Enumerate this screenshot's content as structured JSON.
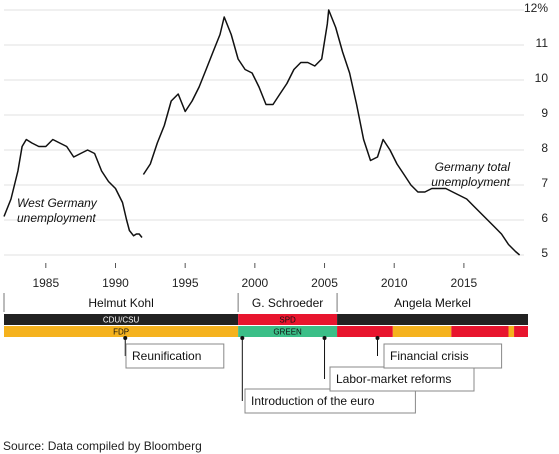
{
  "chart_data": {
    "type": "line",
    "title": "",
    "xlabel": "",
    "ylabel": "",
    "xlim": [
      1982,
      2019.6
    ],
    "ylim": [
      4.8,
      12.0
    ],
    "grid": "horizontal",
    "x_ticks": [
      1985,
      1990,
      1995,
      2000,
      2005,
      2010,
      2015
    ],
    "x_tick_labels": [
      "1985",
      "1990",
      "1995",
      "2000",
      "2005",
      "2010",
      "2015"
    ],
    "y_ticks": [
      5,
      6,
      7,
      8,
      9,
      10,
      11,
      12
    ],
    "y_tick_labels": [
      "5",
      "6",
      "7",
      "8",
      "9",
      "10",
      "11",
      "12%"
    ],
    "series": [
      {
        "name": "West Germany unemployment",
        "color": "#111111",
        "points": [
          [
            1982.0,
            6.1
          ],
          [
            1982.5,
            6.6
          ],
          [
            1983.0,
            7.4
          ],
          [
            1983.3,
            8.1
          ],
          [
            1983.6,
            8.3
          ],
          [
            1984.0,
            8.2
          ],
          [
            1984.5,
            8.1
          ],
          [
            1985.0,
            8.1
          ],
          [
            1985.5,
            8.3
          ],
          [
            1986.0,
            8.2
          ],
          [
            1986.5,
            8.1
          ],
          [
            1987.0,
            7.8
          ],
          [
            1987.5,
            7.9
          ],
          [
            1988.0,
            8.0
          ],
          [
            1988.5,
            7.9
          ],
          [
            1989.0,
            7.4
          ],
          [
            1989.5,
            7.1
          ],
          [
            1990.0,
            6.9
          ],
          [
            1990.5,
            6.5
          ],
          [
            1990.8,
            6.0
          ],
          [
            1991.0,
            5.7
          ],
          [
            1991.3,
            5.55
          ],
          [
            1991.5,
            5.6
          ],
          [
            1991.7,
            5.6
          ],
          [
            1991.9,
            5.5
          ]
        ],
        "label_line1": "West Germany",
        "label_line2": "unemployment"
      },
      {
        "name": "Germany total unemployment",
        "color": "#111111",
        "points": [
          [
            1992.0,
            7.3
          ],
          [
            1992.5,
            7.6
          ],
          [
            1993.0,
            8.2
          ],
          [
            1993.5,
            8.7
          ],
          [
            1994.0,
            9.4
          ],
          [
            1994.5,
            9.6
          ],
          [
            1995.0,
            9.1
          ],
          [
            1995.5,
            9.4
          ],
          [
            1996.0,
            9.8
          ],
          [
            1996.5,
            10.3
          ],
          [
            1997.0,
            10.8
          ],
          [
            1997.5,
            11.3
          ],
          [
            1997.8,
            11.8
          ],
          [
            1998.3,
            11.3
          ],
          [
            1998.8,
            10.6
          ],
          [
            1999.3,
            10.3
          ],
          [
            1999.8,
            10.2
          ],
          [
            2000.3,
            9.8
          ],
          [
            2000.8,
            9.3
          ],
          [
            2001.3,
            9.3
          ],
          [
            2001.8,
            9.6
          ],
          [
            2002.3,
            9.9
          ],
          [
            2002.8,
            10.3
          ],
          [
            2003.3,
            10.5
          ],
          [
            2003.8,
            10.5
          ],
          [
            2004.3,
            10.4
          ],
          [
            2004.8,
            10.6
          ],
          [
            2005.2,
            11.6
          ],
          [
            2005.3,
            12.0
          ],
          [
            2005.8,
            11.5
          ],
          [
            2006.3,
            10.8
          ],
          [
            2006.8,
            10.2
          ],
          [
            2007.3,
            9.3
          ],
          [
            2007.8,
            8.3
          ],
          [
            2008.3,
            7.7
          ],
          [
            2008.8,
            7.8
          ],
          [
            2009.2,
            8.3
          ],
          [
            2009.7,
            8.0
          ],
          [
            2010.2,
            7.6
          ],
          [
            2010.7,
            7.3
          ],
          [
            2011.2,
            7.0
          ],
          [
            2011.7,
            6.8
          ],
          [
            2012.2,
            6.8
          ],
          [
            2012.7,
            6.9
          ],
          [
            2013.2,
            6.9
          ],
          [
            2013.7,
            6.9
          ],
          [
            2014.2,
            6.8
          ],
          [
            2014.7,
            6.7
          ],
          [
            2015.2,
            6.6
          ],
          [
            2015.7,
            6.4
          ],
          [
            2016.2,
            6.2
          ],
          [
            2016.7,
            6.0
          ],
          [
            2017.2,
            5.8
          ],
          [
            2017.7,
            5.6
          ],
          [
            2018.2,
            5.3
          ],
          [
            2018.7,
            5.1
          ],
          [
            2019.0,
            5.0
          ]
        ],
        "label_line1": "Germany total",
        "label_line2": "unemployment"
      }
    ],
    "chancellors": [
      {
        "name": "Helmut Kohl",
        "start": 1982.0,
        "end": 1998.8
      },
      {
        "name": "G. Schroeder",
        "start": 1998.8,
        "end": 2005.9
      },
      {
        "name": "Angela Merkel",
        "start": 2005.9,
        "end": 2019.6
      }
    ],
    "coalition_bars": [
      {
        "row": 1,
        "label": "CDU/CSU",
        "color": "#222222",
        "start": 1982.0,
        "end": 1998.8
      },
      {
        "row": 1,
        "label": "SPD",
        "color": "#e8152e",
        "start": 1998.8,
        "end": 2005.9
      },
      {
        "row": 1,
        "label": "",
        "color": "#222222",
        "start": 2005.9,
        "end": 2019.6
      },
      {
        "row": 2,
        "label": "FDP",
        "color": "#f5b21e",
        "start": 1982.0,
        "end": 1998.8
      },
      {
        "row": 2,
        "label": "GREEN",
        "color": "#3bbf88",
        "start": 1998.8,
        "end": 2005.9
      },
      {
        "row": 2,
        "label": "",
        "color": "#e8152e",
        "start": 2005.9,
        "end": 2009.9
      },
      {
        "row": 2,
        "label": "",
        "color": "#f5b21e",
        "start": 2009.9,
        "end": 2014.1
      },
      {
        "row": 2,
        "label": "",
        "color": "#e8152e",
        "start": 2014.1,
        "end": 2018.2
      },
      {
        "row": 2,
        "label": "",
        "color": "#f5b21e",
        "start": 2018.2,
        "end": 2018.6
      },
      {
        "row": 2,
        "label": "",
        "color": "#e8152e",
        "start": 2018.6,
        "end": 2019.6
      }
    ],
    "events": [
      {
        "label": "Reunification",
        "year": 1990.7
      },
      {
        "label": "Introduction of the euro",
        "year": 1999.1
      },
      {
        "label": "Labor-market reforms",
        "year": 2005.0
      },
      {
        "label": "Financial crisis",
        "year": 2008.8
      }
    ]
  },
  "source": "Source: Data compiled by Bloomberg"
}
